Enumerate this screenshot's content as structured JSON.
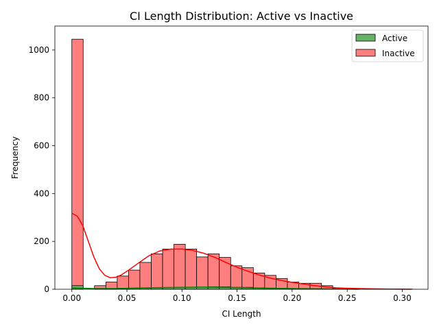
{
  "chart_data": {
    "type": "bar",
    "title": "CI Length Distribution: Active vs Inactive",
    "xlabel": "CI Length",
    "ylabel": "Frequency",
    "xlim": [
      -0.0154,
      0.3234
    ],
    "ylim": [
      0,
      1100
    ],
    "xticks": [
      "0.00",
      "0.05",
      "0.10",
      "0.15",
      "0.20",
      "0.25",
      "0.30"
    ],
    "xtick_values": [
      0,
      0.05,
      0.1,
      0.15,
      0.2,
      0.25,
      0.3
    ],
    "yticks": [
      "0",
      "200",
      "400",
      "600",
      "800",
      "1000"
    ],
    "ytick_values": [
      0,
      200,
      400,
      600,
      800,
      1000
    ],
    "grid": false,
    "legend_position": "top-right",
    "bin_edges": [
      0,
      0.0103,
      0.0206,
      0.0309,
      0.0412,
      0.0515,
      0.0618,
      0.0721,
      0.0824,
      0.0927,
      0.103,
      0.1133,
      0.1236,
      0.1339,
      0.1442,
      0.1545,
      0.1648,
      0.1751,
      0.1854,
      0.1957,
      0.206,
      0.2163,
      0.2266,
      0.2369,
      0.2472,
      0.2575,
      0.2678,
      0.2781,
      0.2884,
      0.2987,
      0.309
    ],
    "series": [
      {
        "name": "Inactive",
        "color": "#ff7f7f",
        "line_color": "#ff0000",
        "values": [
          1045,
          0,
          15,
          30,
          55,
          80,
          112,
          148,
          168,
          188,
          168,
          135,
          148,
          133,
          98,
          90,
          68,
          58,
          45,
          30,
          25,
          25,
          15,
          5,
          3,
          2,
          1,
          1,
          1,
          1
        ],
        "kde": [
          [
            0,
            318
          ],
          [
            0.005,
            305
          ],
          [
            0.01,
            265
          ],
          [
            0.015,
            200
          ],
          [
            0.02,
            135
          ],
          [
            0.025,
            85
          ],
          [
            0.03,
            58
          ],
          [
            0.035,
            48
          ],
          [
            0.04,
            50
          ],
          [
            0.045,
            60
          ],
          [
            0.05,
            75
          ],
          [
            0.06,
            108
          ],
          [
            0.07,
            140
          ],
          [
            0.08,
            160
          ],
          [
            0.09,
            168
          ],
          [
            0.1,
            168
          ],
          [
            0.11,
            162
          ],
          [
            0.12,
            150
          ],
          [
            0.13,
            133
          ],
          [
            0.14,
            112
          ],
          [
            0.15,
            92
          ],
          [
            0.16,
            75
          ],
          [
            0.17,
            60
          ],
          [
            0.18,
            47
          ],
          [
            0.19,
            37
          ],
          [
            0.2,
            29
          ],
          [
            0.21,
            22
          ],
          [
            0.22,
            15
          ],
          [
            0.23,
            10
          ],
          [
            0.24,
            6
          ],
          [
            0.25,
            4
          ],
          [
            0.27,
            2
          ],
          [
            0.29,
            1
          ],
          [
            0.308,
            0
          ]
        ]
      },
      {
        "name": "Active",
        "color": "#66b266",
        "line_color": "#008000",
        "values": [
          15,
          0,
          3,
          3,
          4,
          4,
          5,
          6,
          7,
          8,
          8,
          9,
          10,
          10,
          8,
          8,
          6,
          5,
          4,
          3,
          2,
          2,
          1,
          1,
          0,
          0,
          0,
          0,
          0,
          0
        ],
        "kde": [
          [
            0,
            5
          ],
          [
            0.02,
            3
          ],
          [
            0.04,
            3
          ],
          [
            0.06,
            5
          ],
          [
            0.08,
            7
          ],
          [
            0.1,
            8
          ],
          [
            0.12,
            9
          ],
          [
            0.14,
            8
          ],
          [
            0.16,
            6
          ],
          [
            0.18,
            4
          ],
          [
            0.2,
            3
          ],
          [
            0.22,
            2
          ],
          [
            0.24,
            1
          ],
          [
            0.26,
            0
          ]
        ]
      }
    ]
  }
}
